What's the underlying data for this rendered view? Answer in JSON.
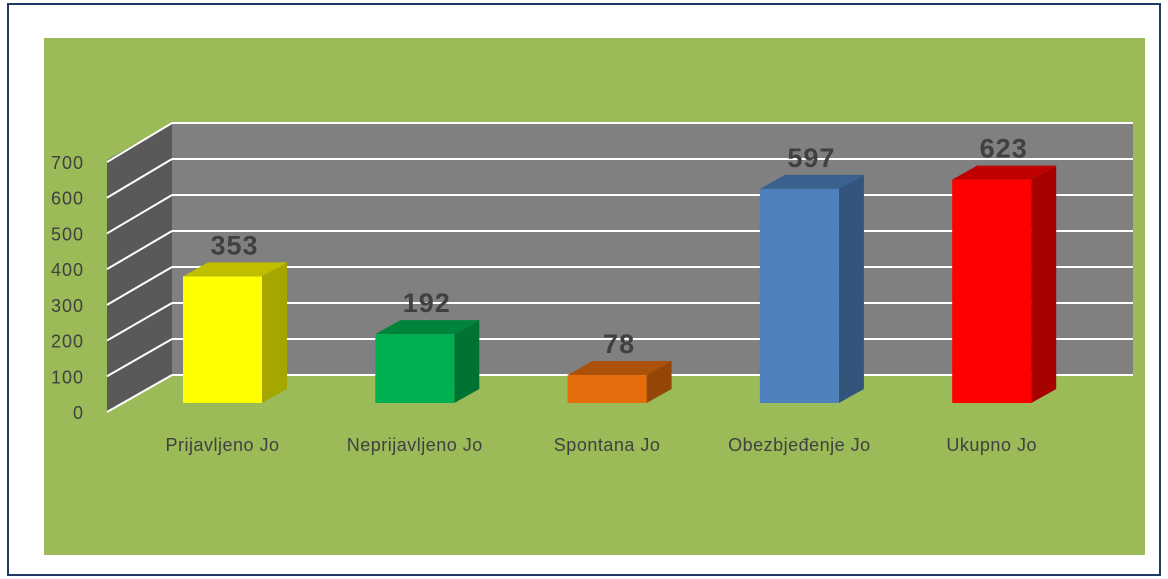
{
  "chart_data": {
    "type": "bar3d",
    "categories": [
      "Prijavljeno Jo",
      "Neprijavljeno Jo",
      "Spontana Jo",
      "Obezbjeđenje Jo",
      "Ukupno Jo"
    ],
    "values": [
      353,
      192,
      78,
      597,
      623
    ],
    "colors": [
      "#ffff00",
      "#00b050",
      "#e46c0a",
      "#4f81bd",
      "#ff0000"
    ],
    "ylim": [
      0,
      700
    ],
    "yticks": [
      0,
      100,
      200,
      300,
      400,
      500,
      600,
      700
    ],
    "grid": true
  }
}
